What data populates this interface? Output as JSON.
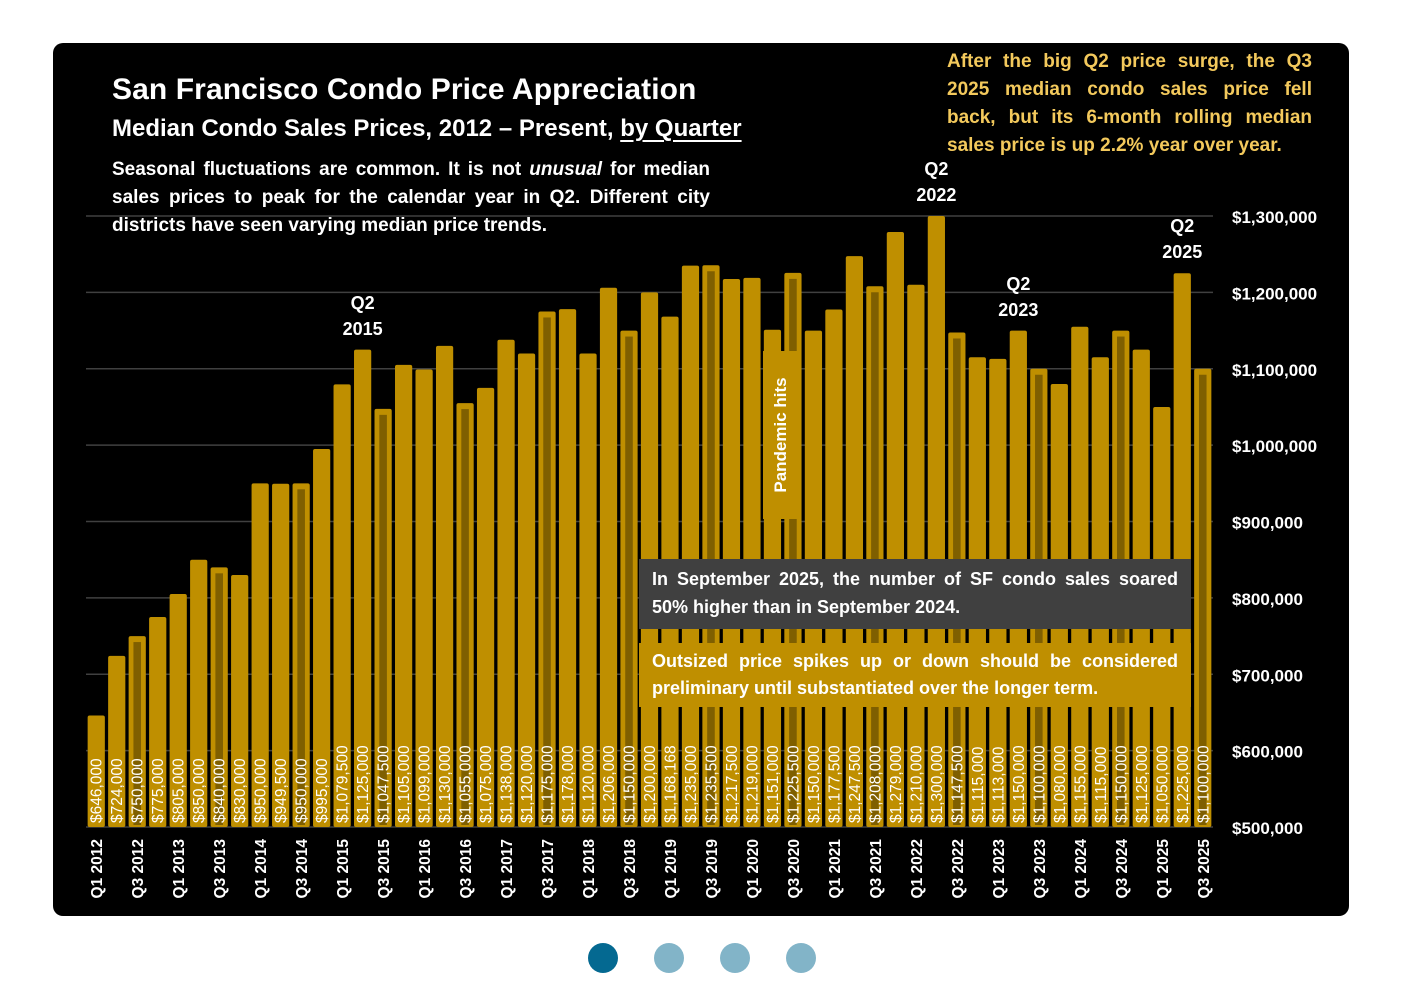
{
  "title": "San Francisco Condo Price Appreciation",
  "subtitle_main": "Median Condo Sales Prices, 2012 – Present, ",
  "subtitle_link": "by Quarter",
  "description": "Seasonal fluctuations are common. It is not unusual for median sales prices to peak for the calendar year in Q2. Different city districts have seen varying median price trends.",
  "description_parts": {
    "before": "Seasonal fluctuations are common. It is not ",
    "emphasis": "unusual",
    "after": " for median sales prices to peak for the calendar year in Q2. Different city districts have seen varying median price trends."
  },
  "note_top_right": "After the big Q2 price surge, the Q3 2025 median condo sales price fell back, but its 6-month rolling median sales price is up 2.2% year over year.",
  "note_sales_box": "In September 2025, the number of SF condo sales soared 50% higher than in September 2024.",
  "note_preliminary_box": "Outsized price spikes up or down should be considered preliminary until substantiated over the longer term.",
  "pandemic_label": "Pandemic hits",
  "q2_callouts": [
    {
      "quarter": "Q2 2015",
      "line1": "Q2",
      "line2": "2015"
    },
    {
      "quarter": "Q2 2022",
      "line1": "Q2",
      "line2": "2022"
    },
    {
      "quarter": "Q2 2023",
      "line1": "Q2",
      "line2": "2023"
    },
    {
      "quarter": "Q2 2025",
      "line1": "Q2",
      "line2": "2025"
    }
  ],
  "colors": {
    "background": "#000000",
    "bar": "#bf8f00",
    "bar_q3_stripe": "#7f5f00",
    "gridline": "#404040",
    "note_gold_text": "#f3c95c",
    "gray_box": "#404040",
    "dot_active": "#046991",
    "dot_inactive": "#82b4c8"
  },
  "carousel": {
    "count": 4,
    "active_index": 0
  },
  "chart_data": {
    "type": "bar",
    "title": "San Francisco Condo Price Appreciation",
    "subtitle": "Median Condo Sales Prices, 2012 – Present, by Quarter",
    "xlabel": "",
    "ylabel": "",
    "ylim": [
      500000,
      1300000
    ],
    "y_axis_position": "right",
    "grid": true,
    "yticks": [
      500000,
      600000,
      700000,
      800000,
      900000,
      1000000,
      1100000,
      1200000,
      1300000
    ],
    "ytick_labels": [
      "$500,000",
      "$600,000",
      "$700,000",
      "$800,000",
      "$900,000",
      "$1,000,000",
      "$1,100,000",
      "$1,200,000",
      "$1,300,000"
    ],
    "categories": [
      "Q1 2012",
      "Q2 2012",
      "Q3 2012",
      "Q4 2012",
      "Q1 2013",
      "Q2 2013",
      "Q3 2013",
      "Q4 2013",
      "Q1 2014",
      "Q2 2014",
      "Q3 2014",
      "Q4 2014",
      "Q1 2015",
      "Q2 2015",
      "Q3 2015",
      "Q4 2015",
      "Q1 2016",
      "Q2 2016",
      "Q3 2016",
      "Q4 2016",
      "Q1 2017",
      "Q2 2017",
      "Q3 2017",
      "Q4 2017",
      "Q1 2018",
      "Q2 2018",
      "Q3 2018",
      "Q4 2018",
      "Q1 2019",
      "Q2 2019",
      "Q3 2019",
      "Q4 2019",
      "Q1 2020",
      "Q2 2020",
      "Q3 2020",
      "Q4 2020",
      "Q1 2021",
      "Q2 2021",
      "Q3 2021",
      "Q4 2021",
      "Q1 2022",
      "Q2 2022",
      "Q3 2022",
      "Q4 2022",
      "Q1 2023",
      "Q2 2023",
      "Q3 2023",
      "Q4 2023",
      "Q1 2024",
      "Q2 2024",
      "Q3 2024",
      "Q4 2024",
      "Q1 2025",
      "Q2 2025",
      "Q3 2025"
    ],
    "xtick_labels_shown": [
      "Q1 2012",
      "Q3 2012",
      "Q1 2013",
      "Q3 2013",
      "Q1 2014",
      "Q3 2014",
      "Q1 2015",
      "Q3 2015",
      "Q1 2016",
      "Q3 2016",
      "Q1 2017",
      "Q3 2017",
      "Q1 2018",
      "Q3 2018",
      "Q1 2019",
      "Q3 2019",
      "Q1 2020",
      "Q3 2020",
      "Q1 2021",
      "Q3 2021",
      "Q1 2022",
      "Q3 2022",
      "Q1 2023",
      "Q3 2023",
      "Q1 2024",
      "Q3 2024",
      "Q1 2025",
      "Q3 2025"
    ],
    "values": [
      646000,
      724000,
      750000,
      775000,
      805000,
      850000,
      840000,
      830000,
      950000,
      949500,
      950000,
      995000,
      1079500,
      1125000,
      1047500,
      1105000,
      1099000,
      1130000,
      1055000,
      1075000,
      1138000,
      1120000,
      1175000,
      1178000,
      1120000,
      1206000,
      1150000,
      1200000,
      1168168,
      1235000,
      1235500,
      1217500,
      1219000,
      1151000,
      1225500,
      1150000,
      1177500,
      1247500,
      1208000,
      1279000,
      1210000,
      1300000,
      1147500,
      1115000,
      1113000,
      1150000,
      1100000,
      1080000,
      1155000,
      1115000,
      1150000,
      1125000,
      1050000,
      1225000,
      1100000
    ],
    "data_labels": [
      "$646,000",
      "$724,000",
      "$750,000",
      "$775,000",
      "$805,000",
      "$850,000",
      "$840,000",
      "$830,000",
      "$950,000",
      "$949,500",
      "$950,000",
      "$995,000",
      "$1,079,500",
      "$1,125,000",
      "$1,047,500",
      "$1,105,000",
      "$1,099,000",
      "$1,130,000",
      "$1,055,000",
      "$1,075,000",
      "$1,138,000",
      "$1,120,000",
      "$1,175,000",
      "$1,178,000",
      "$1,120,000",
      "$1,206,000",
      "$1,150,000",
      "$1,200,000",
      "$1,168,168",
      "$1,235,000",
      "$1,235,500",
      "$1,217,500",
      "$1,219,000",
      "$1,151,000",
      "$1,225,500",
      "$1,150,000",
      "$1,177,500",
      "$1,247,500",
      "$1,208,000",
      "$1,279,000",
      "$1,210,000",
      "$1,300,000",
      "$1,147,500",
      "$1,115,000",
      "$1,113,000",
      "$1,150,000",
      "$1,100,000",
      "$1,080,000",
      "$1,155,000",
      "$1,115,000",
      "$1,150,000",
      "$1,125,000",
      "$1,050,000",
      "$1,225,000",
      "$1,100,000"
    ],
    "highlighted_q3_stripe": true,
    "annotations": [
      "Q2 2015",
      "Q2 2022",
      "Q2 2023",
      "Q2 2025",
      "Pandemic hits"
    ]
  }
}
